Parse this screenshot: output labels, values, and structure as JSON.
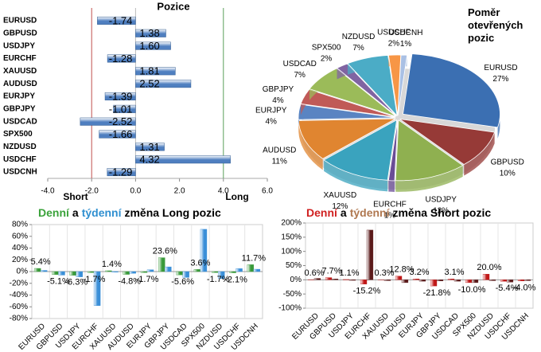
{
  "chart_data": [
    {
      "type": "hbar",
      "title": "Pozice",
      "categories": [
        "EURUSD",
        "GBPUSD",
        "USDJPY",
        "EURCHF",
        "XAUUSD",
        "AUDUSD",
        "EURJPY",
        "GBPJPY",
        "USDCAD",
        "SPX500",
        "NZDUSD",
        "USDCHF",
        "USDCNH"
      ],
      "values": [
        -1.74,
        1.38,
        1.6,
        -1.28,
        1.81,
        2.52,
        -1.39,
        -1.01,
        -2.52,
        -1.66,
        1.31,
        4.32,
        -1.29
      ],
      "value_labels": [
        "-1.74",
        "1.38",
        "1.60",
        "-1.28",
        "1.81",
        "2.52",
        "-1.39",
        "-1.01",
        "-2.52",
        "-1.66",
        "1.31",
        "4.32",
        "-1.29"
      ],
      "color": "#4f7fc0",
      "xlim": [
        -4,
        6
      ],
      "xticks": [
        {
          "value": -4,
          "label": "-4.0"
        },
        {
          "value": -2,
          "label": "-2.0"
        },
        {
          "value": 0,
          "label": "0.0"
        },
        {
          "value": 2,
          "label": "2.0"
        },
        {
          "value": 4,
          "label": "4.0"
        },
        {
          "value": 6,
          "label": "6.0"
        }
      ],
      "annotations": [
        "Short",
        "Long"
      ],
      "reference_lines": [
        {
          "value": -2,
          "color": "#c0504d"
        },
        {
          "value": 4,
          "color": "#5aa05a"
        }
      ]
    },
    {
      "type": "pie",
      "title": "Poměr otevřených pozic",
      "categories": [
        "EURUSD",
        "GBPUSD",
        "USDJPY",
        "EURCHF",
        "XAUUSD",
        "AUDUSD",
        "EURJPY",
        "GBPJPY",
        "USDCAD",
        "SPX500",
        "NZDUSD",
        "USDCHF",
        "USDCNH"
      ],
      "values": [
        27,
        10,
        12,
        1,
        12,
        11,
        4,
        4,
        7,
        2,
        7,
        2,
        1
      ],
      "value_labels": [
        "27%",
        "10%",
        "12%",
        "1%",
        "12%",
        "11%",
        "4%",
        "4%",
        "7%",
        "2%",
        "7%",
        "2%",
        "1%"
      ],
      "colors": [
        "#3b6fb2",
        "#963a37",
        "#8fb050",
        "#6a4c96",
        "#3aa3be",
        "#e08530",
        "#5a84c2",
        "#c05a57",
        "#9bbb59",
        "#8064a2",
        "#4bacc6",
        "#f79646",
        "#a9c0e4"
      ]
    },
    {
      "type": "grouped-bar",
      "title_parts": [
        {
          "text": "Denní",
          "color": "#3aa23a"
        },
        {
          "text": "a",
          "color": "#000000"
        },
        {
          "text": "týdenní",
          "color": "#2f8fd0"
        },
        {
          "text": "změna Long pozic",
          "color": "#000000"
        }
      ],
      "categories": [
        "EURUSD",
        "GBPUSD",
        "USDJPY",
        "EURCHF",
        "XAUUSD",
        "AUDUSD",
        "EURJPY",
        "GBPJPY",
        "USDCAD",
        "SPX500",
        "NZDUSD",
        "USDCHF",
        "USDCNH"
      ],
      "series": [
        {
          "color": "#3a9a3a",
          "values": [
            5.4,
            -5.1,
            -6.3,
            -1.7,
            1.4,
            -4.8,
            -1.7,
            23.6,
            -5.6,
            3.6,
            -1.7,
            -2.1,
            11.7
          ],
          "value_labels": [
            "5.4%",
            "-5.1%",
            "-6.3%",
            "-1.7%",
            "1.4%",
            "-4.8%",
            "-1.7%",
            "23.6%",
            "-5.6%",
            "3.6%",
            "-1.7%",
            "-2.1%",
            "11.7%"
          ]
        },
        {
          "color": "#3a8fd8",
          "values": [
            2,
            -6,
            -9,
            -58,
            -1,
            -3,
            3,
            8,
            -10,
            72,
            -12,
            5,
            4
          ]
        }
      ],
      "ylim": [
        -80,
        80
      ],
      "yticks": [
        {
          "value": -80,
          "label": "-80%"
        },
        {
          "value": -60,
          "label": "-60%"
        },
        {
          "value": -40,
          "label": "-40%"
        },
        {
          "value": -20,
          "label": "-20%"
        },
        {
          "value": 0,
          "label": "0%"
        },
        {
          "value": 20,
          "label": "20%"
        },
        {
          "value": 40,
          "label": "40%"
        },
        {
          "value": 60,
          "label": "60%"
        },
        {
          "value": 80,
          "label": "80%"
        }
      ]
    },
    {
      "type": "grouped-bar",
      "title_parts": [
        {
          "text": "Denní",
          "color": "#d02020"
        },
        {
          "text": "a",
          "color": "#000000"
        },
        {
          "text": "týdenní",
          "color": "#b07850"
        },
        {
          "text": "změna Short pozic",
          "color": "#000000"
        }
      ],
      "categories": [
        "EURUSD",
        "GBPUSD",
        "USDJPY",
        "EURCHF",
        "XAUUSD",
        "AUDUSD",
        "EURJPY",
        "GBPJPY",
        "USDCAD",
        "SPX500",
        "NZDUSD",
        "USDCHF",
        "USDCNH"
      ],
      "series": [
        {
          "color": "#c01818",
          "values": [
            0.6,
            7.7,
            1.1,
            -15.2,
            0.3,
            12.8,
            3.2,
            -21.8,
            3.1,
            -10.0,
            20.0,
            -5.4,
            -4.0
          ],
          "value_labels": [
            "0.6%",
            "7.7%",
            "1.1%",
            "-15.2%",
            "0.3%",
            "12.8%",
            "3.2%",
            "-21.8%",
            "3.1%",
            "-10.0%",
            "20.0%",
            "-5.4%",
            "-4.0%"
          ]
        },
        {
          "color": "#5a1a1a",
          "values": [
            5,
            3,
            -2,
            175,
            -3,
            -10,
            -5,
            -4,
            -5,
            -10,
            -3,
            -8,
            -3
          ]
        }
      ],
      "ylim": [
        -100,
        200
      ],
      "yticks": [
        {
          "value": -100,
          "label": "-100%"
        },
        {
          "value": -50,
          "label": "-50%"
        },
        {
          "value": 0,
          "label": "0%"
        },
        {
          "value": 50,
          "label": "50%"
        },
        {
          "value": 100,
          "label": "100%"
        },
        {
          "value": 150,
          "label": "150%"
        },
        {
          "value": 200,
          "label": "200%"
        }
      ]
    }
  ]
}
